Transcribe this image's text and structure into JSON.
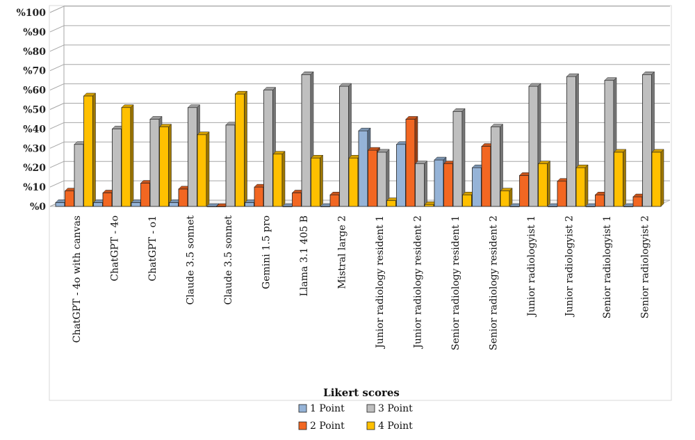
{
  "chart_data": {
    "type": "bar",
    "title": "",
    "xlabel": "Likert scores",
    "ylabel": "",
    "ylim": [
      0,
      100
    ],
    "yticks": [
      "%0",
      "%10",
      "%20",
      "%30",
      "%40",
      "%50",
      "%60",
      "%70",
      "%80",
      "%90",
      "%100"
    ],
    "grid": true,
    "legend_position": "bottom",
    "categories": [
      "ChatGPT - 4o with canvas",
      "ChatGPT - 4o",
      "ChatGPT - o1",
      "Claude 3.5 sonnet",
      "Claude 3.5 sonnet",
      "Gemini 1.5 pro",
      "Llama 3.1 405 B",
      "Mistral large 2",
      "Junior radiology resident 1",
      "Junior radiology resident 2",
      "Senior radiology resident 1",
      "Senior radiology resident 2",
      "Junior radiologyist 1",
      "Junior radiologyist 2",
      "Senior radiologyist 1",
      "Senior radiologyist 2"
    ],
    "series": [
      {
        "name": "1 Point",
        "color": "#95b3d7",
        "values": [
          2,
          2,
          2,
          2,
          0,
          2,
          0,
          0,
          39,
          32,
          24,
          20,
          0,
          0,
          0,
          0
        ]
      },
      {
        "name": "2 Point",
        "color": "#f26722",
        "values": [
          8,
          7,
          12,
          9,
          0,
          10,
          7,
          6,
          29,
          45,
          22,
          31,
          16,
          13,
          6,
          5
        ]
      },
      {
        "name": "3 Point",
        "color": "#bfbfbf",
        "values": [
          32,
          40,
          45,
          51,
          42,
          60,
          68,
          62,
          28,
          22,
          49,
          41,
          62,
          67,
          65,
          68
        ]
      },
      {
        "name": "4 Point",
        "color": "#ffc000",
        "values": [
          57,
          51,
          41,
          37,
          58,
          27,
          25,
          25,
          3,
          1,
          6,
          8,
          22,
          20,
          28,
          28
        ]
      }
    ]
  }
}
